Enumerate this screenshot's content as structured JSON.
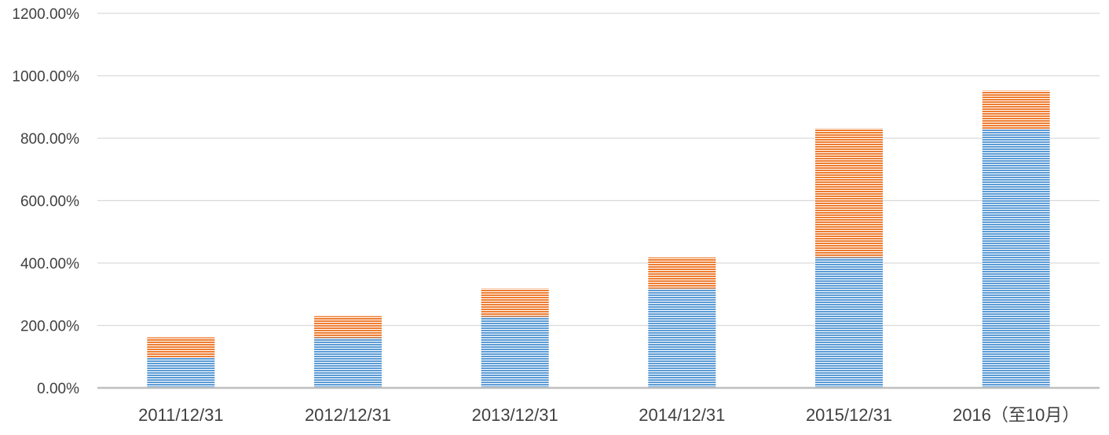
{
  "colors": {
    "series_1": "#5b9bd5",
    "series_2": "#ed7d31",
    "grid": "#d9d9d9",
    "axis": "#bfbfbf",
    "text": "#404040",
    "background": "#ffffff"
  },
  "chart_data": {
    "type": "bar",
    "stacked": true,
    "title": "",
    "xlabel": "",
    "ylabel": "",
    "categories": [
      "2011/12/31",
      "2012/12/31",
      "2013/12/31",
      "2014/12/31",
      "2015/12/31",
      "2016（至10月）"
    ],
    "series": [
      {
        "values": [
          97,
          160,
          228,
          318,
          418,
          830
        ],
        "color": "#5b9bd5"
      },
      {
        "values": [
          65,
          70,
          90,
          100,
          413,
          122
        ],
        "color": "#ed7d31"
      }
    ],
    "ylim": [
      0,
      1200
    ],
    "yticks": [
      0,
      200,
      400,
      600,
      800,
      1000,
      1200
    ],
    "ytick_labels": [
      "0.00%",
      "200.00%",
      "400.00%",
      "600.00%",
      "800.00%",
      "1000.00%",
      "1200.00%"
    ],
    "grid": true,
    "legend": "none",
    "fill_pattern": "horizontal-lines"
  }
}
